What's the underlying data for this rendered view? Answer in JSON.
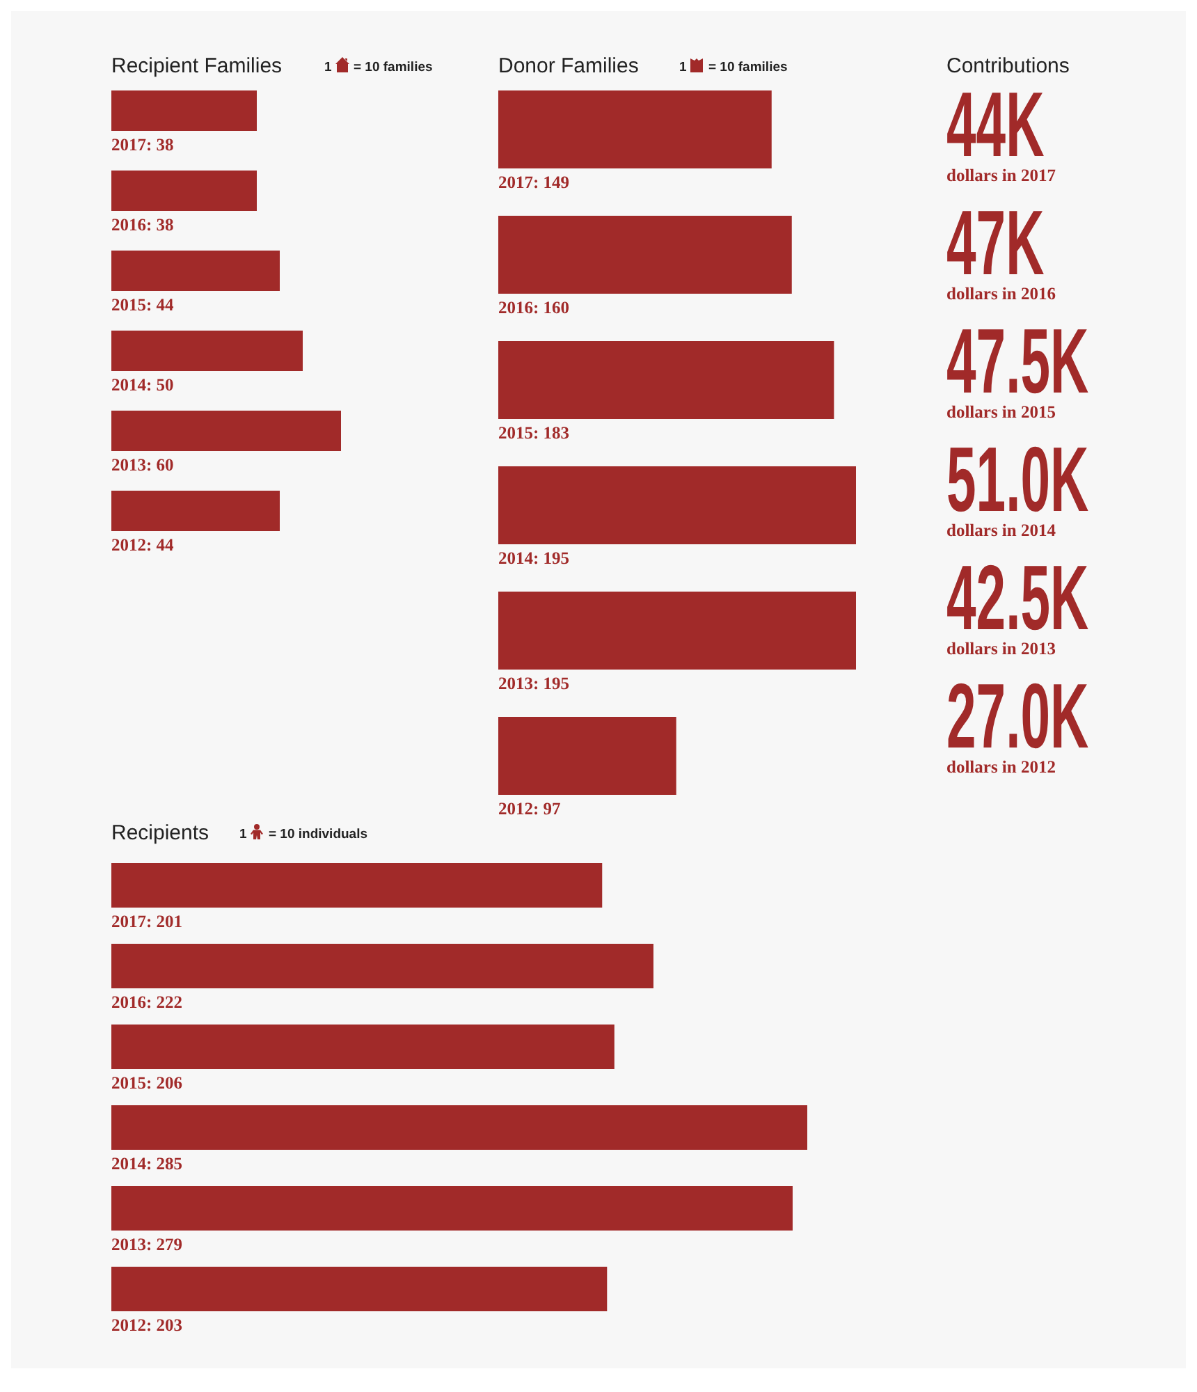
{
  "chart_data": [
    {
      "type": "bar",
      "orientation": "horizontal",
      "title": "Recipient Families",
      "annotations": [
        "1",
        "= 10 families"
      ],
      "categories": [
        null,
        null,
        null,
        null,
        null,
        null
      ],
      "values": [
        38,
        38,
        44,
        50,
        60,
        44
      ],
      "value_labels": [
        "2017: 38",
        "2016: 38",
        "2015: 44",
        "2014: 50",
        "2013: 60",
        "2012: 44"
      ],
      "color": "#a12a29"
    },
    {
      "type": "bar",
      "orientation": "horizontal",
      "title": "Donor Families",
      "annotations": [
        "1",
        "= 10 families"
      ],
      "categories": [
        null,
        null,
        null,
        null,
        null,
        null
      ],
      "values": [
        149,
        160,
        183,
        195,
        195,
        97
      ],
      "value_labels": [
        "2017: 149",
        "2016: 160",
        "2015: 183",
        "2014: 195",
        "2013: 195",
        "2012: 97"
      ],
      "color": "#a12a29"
    },
    {
      "type": "other",
      "title": "Contributions",
      "annotations": [
        "44K",
        "dollars in 2017",
        "47K",
        "dollars in 2016",
        "47.5K",
        "dollars in 2015",
        "51.0K",
        "dollars in 2014",
        "42.5K",
        "dollars in 2013",
        "27.0K",
        "dollars in 2012"
      ]
    },
    {
      "type": "bar",
      "orientation": "horizontal",
      "title": "Recipients",
      "annotations": [
        "1",
        "= 10 individuals"
      ],
      "categories": [
        null,
        null,
        null,
        null,
        null,
        null
      ],
      "values": [
        201,
        222,
        206,
        285,
        279,
        203
      ],
      "value_labels": [
        "2017: 201",
        "2016: 222",
        "2015: 206",
        "2014: 285",
        "2013: 279",
        "2012: 203"
      ],
      "color": "#a12a29"
    }
  ]
}
